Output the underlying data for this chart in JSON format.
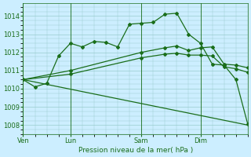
{
  "background_color": "#cceeff",
  "grid_color": "#99cccc",
  "line_color": "#1a6e1a",
  "title": "Pression niveau de la mer( hPa )",
  "ylabel_ticks": [
    1008,
    1009,
    1010,
    1011,
    1012,
    1013,
    1014
  ],
  "ylim": [
    1007.5,
    1014.7
  ],
  "x_tick_labels": [
    "Ven",
    "Lun",
    "Sam",
    "Dim"
  ],
  "x_tick_positions": [
    0,
    4,
    10,
    15
  ],
  "vline_positions": [
    0,
    4,
    10,
    15
  ],
  "xlim": [
    0,
    19
  ],
  "series": {
    "line1_x": [
      0,
      1,
      2,
      3,
      4,
      5,
      6,
      7,
      8,
      9,
      10,
      11,
      12,
      13,
      14,
      15,
      16,
      17,
      18,
      19
    ],
    "line1_y": [
      1010.5,
      1010.1,
      1010.3,
      1011.8,
      1012.5,
      1012.3,
      1012.6,
      1012.55,
      1012.3,
      1013.55,
      1013.6,
      1013.65,
      1014.1,
      1014.15,
      1013.0,
      1012.5,
      1011.35,
      1011.3,
      1010.5,
      1008.05
    ],
    "line2_x": [
      0,
      4,
      10,
      12,
      13,
      14,
      15,
      16,
      17,
      18,
      19
    ],
    "line2_y": [
      1010.5,
      1011.0,
      1012.0,
      1012.25,
      1012.35,
      1012.1,
      1012.25,
      1012.3,
      1011.35,
      1011.3,
      1011.15
    ],
    "line3_x": [
      0,
      4,
      10,
      12,
      13,
      14,
      15,
      16,
      17,
      18,
      19
    ],
    "line3_y": [
      1010.5,
      1010.8,
      1011.7,
      1011.9,
      1011.95,
      1011.85,
      1011.85,
      1011.8,
      1011.2,
      1011.1,
      1010.9
    ],
    "line4_x": [
      0,
      19
    ],
    "line4_y": [
      1010.5,
      1008.0
    ]
  },
  "marker": "D",
  "markersize": 2.0,
  "linewidth": 0.9
}
